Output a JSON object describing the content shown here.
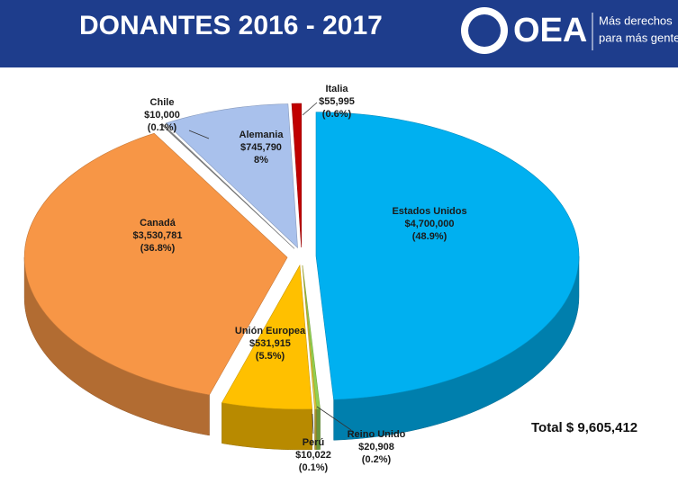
{
  "header": {
    "logo": "OEA",
    "tagline": [
      "Más derechos",
      "para más gente"
    ]
  },
  "chart_data": {
    "type": "pie",
    "title": "DONANTES 2016 - 2017",
    "categories": [
      "Estados Unidos",
      "Reino Unido",
      "Perú",
      "Unión Europea",
      "Canadá",
      "Chile",
      "Alemania",
      "Italia"
    ],
    "values": [
      4700000,
      20908,
      10022,
      531915,
      3530781,
      10000,
      745790,
      55995
    ],
    "value_labels": [
      "$4,700,000",
      "$20,908",
      "$10,022",
      "$531,915",
      "$3,530,781",
      "$10,000",
      "$745,790",
      "$55,995"
    ],
    "percent_labels": [
      "(48.9%)",
      "(0.2%)",
      "(0.1%)",
      "(5.5%)",
      "(36.8%)",
      "(0.1%)",
      "8%",
      "(0.6%)"
    ],
    "colors": [
      "#00b0f0",
      "#92d050",
      "#e2c93a",
      "#ffc000",
      "#f79646",
      "#8c8c8c",
      "#a9c1ec",
      "#c00000"
    ],
    "total": "Total $ 9,605,412"
  }
}
